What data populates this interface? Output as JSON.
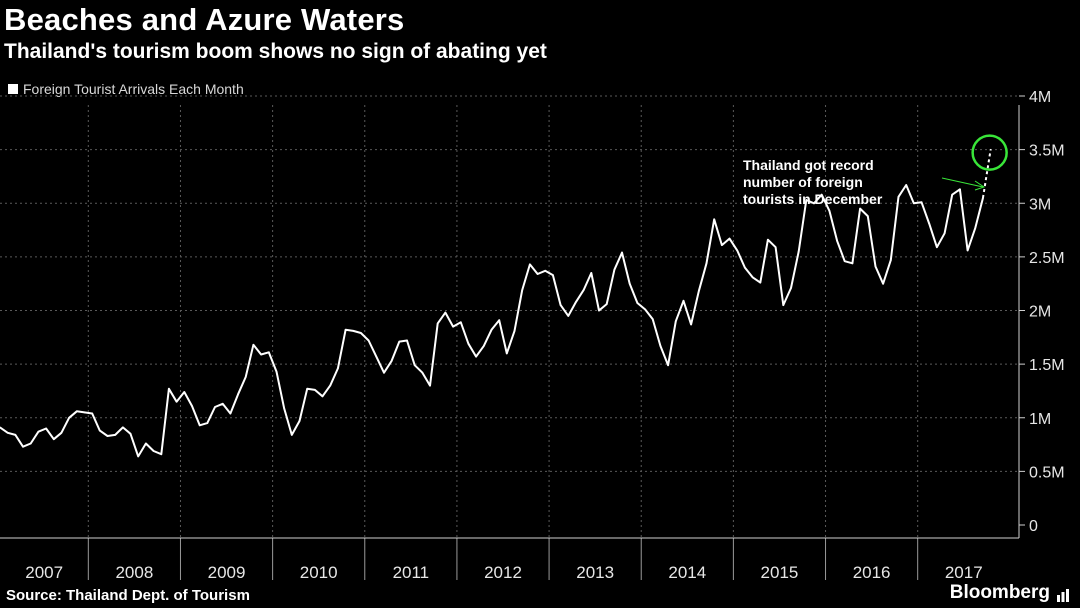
{
  "header": {
    "title": "Beaches and Azure Waters",
    "subtitle": "Thailand's tourism boom shows no sign of abating yet"
  },
  "footer": {
    "source": "Source: Thailand Dept. of Tourism",
    "brand": "Bloomberg"
  },
  "colors": {
    "background": "#000000",
    "line": "#ffffff",
    "grid": "#5a5a5a",
    "highlight": "#39e639",
    "text": "#ffffff"
  },
  "chart_data": {
    "type": "line",
    "title": "Beaches and Azure Waters",
    "subtitle": "Thailand's tourism boom shows no sign of abating yet",
    "xlabel": "",
    "ylabel": "",
    "ylim": [
      0,
      4000000
    ],
    "y_ticks": [
      0,
      500000,
      1000000,
      1500000,
      2000000,
      2500000,
      3000000,
      3500000,
      4000000
    ],
    "y_tick_labels": [
      "0",
      "0.5M",
      "1M",
      "1.5M",
      "2M",
      "2.5M",
      "3M",
      "3.5M",
      "4M"
    ],
    "x_categories": [
      "2007",
      "2008",
      "2009",
      "2010",
      "2011",
      "2012",
      "2013",
      "2014",
      "2015",
      "2016",
      "2017"
    ],
    "grid": true,
    "legend_position": "top-left",
    "series": [
      {
        "name": "Foreign Tourist Arrivals Each Month",
        "start": "2007-01",
        "frequency": "monthly",
        "values": [
          910000,
          860000,
          840000,
          730000,
          760000,
          870000,
          900000,
          800000,
          860000,
          1000000,
          1060000,
          1050000,
          1040000,
          880000,
          830000,
          840000,
          910000,
          850000,
          640000,
          760000,
          690000,
          660000,
          1270000,
          1150000,
          1240000,
          1110000,
          930000,
          950000,
          1100000,
          1130000,
          1040000,
          1220000,
          1380000,
          1680000,
          1590000,
          1610000,
          1430000,
          1090000,
          840000,
          970000,
          1270000,
          1260000,
          1200000,
          1300000,
          1460000,
          1820000,
          1810000,
          1790000,
          1720000,
          1570000,
          1420000,
          1530000,
          1710000,
          1720000,
          1490000,
          1420000,
          1300000,
          1880000,
          1980000,
          1850000,
          1890000,
          1690000,
          1570000,
          1670000,
          1820000,
          1910000,
          1600000,
          1810000,
          2190000,
          2430000,
          2340000,
          2370000,
          2330000,
          2050000,
          1950000,
          2080000,
          2190000,
          2350000,
          2000000,
          2060000,
          2380000,
          2540000,
          2250000,
          2070000,
          2010000,
          1920000,
          1670000,
          1490000,
          1900000,
          2090000,
          1870000,
          2180000,
          2440000,
          2850000,
          2610000,
          2670000,
          2560000,
          2400000,
          2310000,
          2260000,
          2660000,
          2590000,
          2050000,
          2210000,
          2550000,
          3030000,
          3000000,
          3080000,
          2930000,
          2650000,
          2460000,
          2440000,
          2950000,
          2880000,
          2410000,
          2250000,
          2470000,
          3060000,
          3170000,
          3000000,
          3010000,
          2810000,
          2590000,
          2720000,
          3080000,
          3130000,
          2560000,
          2770000,
          3050000,
          3500000
        ]
      }
    ],
    "annotations": [
      {
        "text": "Thailand got record number of foreign tourists in December",
        "target_value": 3500000
      }
    ]
  },
  "annotation_lines": [
    "Thailand got record",
    "number of foreign",
    "tourists in December"
  ]
}
